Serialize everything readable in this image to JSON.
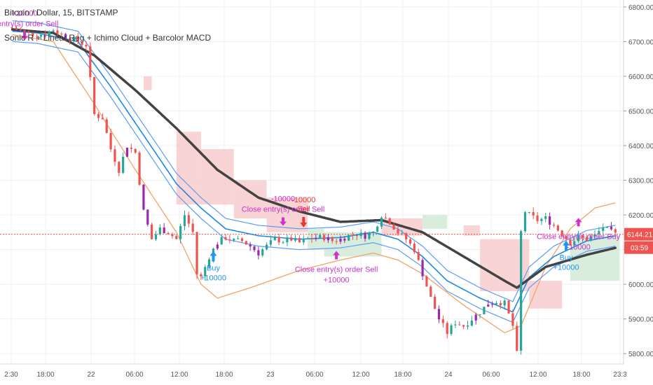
{
  "header": {
    "title": "Bitcoin / Dollar, 15, BITSTAMP",
    "indicators": "Sonic R + Linear Reg + Ichimo Cloud + Barcolor MACD"
  },
  "colors": {
    "up": "#26a69a",
    "down": "#ef5350",
    "macd_purple": "#9c27b0",
    "ema_dark": "#434343",
    "ema_blue_outer": "#5b9cf6",
    "ema_blue_mid": "#1e88e5",
    "linreg_orange": "#f4a261",
    "cloud_red": "#f8c9c9",
    "cloud_green": "#cfe8d5",
    "strategy_magenta": "#cc33cc",
    "strategy_blue": "#2196f3",
    "strategy_red": "#e53935",
    "price_line": "#ef5350"
  },
  "price_axis": {
    "ticks": [
      "6800.00",
      "6700.00",
      "6600.00",
      "6500.00",
      "6400.00",
      "6300.00",
      "6200.00",
      "6100.00",
      "6000.00",
      "5900.00",
      "5800.00"
    ],
    "current_price": "6144.21",
    "countdown": "03:59"
  },
  "time_axis": {
    "ticks": [
      "2:30",
      "18:00",
      "22",
      "06:00",
      "12:00",
      "18:00",
      "23",
      "06:00",
      "12:00",
      "18:00",
      "24",
      "06:00",
      "12:00",
      "18:00",
      "23:3"
    ]
  },
  "annotations": [
    {
      "kind": "close-sell",
      "text": "e entry(s) order Sell",
      "qty": "+10000"
    },
    {
      "kind": "buy",
      "text": "Buy",
      "qty": "+10000"
    },
    {
      "kind": "close-sell",
      "text": "Close entry(s) order Sell",
      "qty": "-10000"
    },
    {
      "kind": "sell",
      "text": "Sell",
      "qty": "-10000"
    },
    {
      "kind": "close-buy",
      "text": "Close entry(s) order Sell",
      "qty": "+10000"
    },
    {
      "kind": "buy",
      "text": "Buy",
      "qty": "+10000"
    },
    {
      "kind": "close-buy",
      "text": "Close entry(s) order Buy",
      "qty": "-10000"
    }
  ],
  "chart_data": {
    "type": "candlestick",
    "symbol": "Bitcoin / Dollar",
    "interval": "15",
    "exchange": "BITSTAMP",
    "ylim": [
      5770,
      6820
    ],
    "x_range_hours": [
      0,
      74
    ],
    "grid": true,
    "close_path": [
      [
        0,
        6740
      ],
      [
        2,
        6722
      ],
      [
        4,
        6720
      ],
      [
        5,
        6735
      ],
      [
        6,
        6720
      ],
      [
        8,
        6700
      ],
      [
        9,
        6690
      ],
      [
        10,
        6490
      ],
      [
        11,
        6480
      ],
      [
        12,
        6390
      ],
      [
        13,
        6330
      ],
      [
        14,
        6400
      ],
      [
        15,
        6380
      ],
      [
        16,
        6210
      ],
      [
        17,
        6130
      ],
      [
        18,
        6160
      ],
      [
        19,
        6150
      ],
      [
        20,
        6130
      ],
      [
        21,
        6200
      ],
      [
        22,
        6150
      ],
      [
        22.5,
        6030
      ],
      [
        23,
        6020
      ],
      [
        24,
        6080
      ],
      [
        25,
        6120
      ],
      [
        26,
        6135
      ],
      [
        27,
        6125
      ],
      [
        28,
        6125
      ],
      [
        29,
        6110
      ],
      [
        30,
        6090
      ],
      [
        31,
        6110
      ],
      [
        32,
        6130
      ],
      [
        33,
        6125
      ],
      [
        34,
        6130
      ],
      [
        35,
        6120
      ],
      [
        36,
        6130
      ],
      [
        37,
        6135
      ],
      [
        38,
        6135
      ],
      [
        39,
        6125
      ],
      [
        40,
        6130
      ],
      [
        41,
        6140
      ],
      [
        42,
        6145
      ],
      [
        43,
        6140
      ],
      [
        44,
        6150
      ],
      [
        45,
        6200
      ],
      [
        46,
        6180
      ],
      [
        47,
        6150
      ],
      [
        48,
        6130
      ],
      [
        49,
        6100
      ],
      [
        50,
        6030
      ],
      [
        51,
        5960
      ],
      [
        52,
        5900
      ],
      [
        53,
        5860
      ],
      [
        54,
        5890
      ],
      [
        55,
        5880
      ],
      [
        56,
        5900
      ],
      [
        57,
        5920
      ],
      [
        58,
        5945
      ],
      [
        59,
        5950
      ],
      [
        60,
        5945
      ],
      [
        61,
        5880
      ],
      [
        61.5,
        5800
      ],
      [
        62,
        6150
      ],
      [
        62.5,
        6210
      ],
      [
        63,
        6200
      ],
      [
        64,
        6185
      ],
      [
        65,
        6190
      ],
      [
        66,
        6170
      ],
      [
        67,
        6145
      ],
      [
        68,
        6120
      ],
      [
        69,
        6135
      ],
      [
        70,
        6130
      ],
      [
        71,
        6140
      ],
      [
        72,
        6165
      ],
      [
        73,
        6150
      ],
      [
        73.5,
        6144.21
      ]
    ],
    "ema_slow_path": [
      [
        0,
        6735
      ],
      [
        5,
        6725
      ],
      [
        10,
        6660
      ],
      [
        15,
        6560
      ],
      [
        20,
        6450
      ],
      [
        25,
        6330
      ],
      [
        30,
        6250
      ],
      [
        35,
        6210
      ],
      [
        40,
        6180
      ],
      [
        45,
        6185
      ],
      [
        50,
        6150
      ],
      [
        55,
        6080
      ],
      [
        60,
        6010
      ],
      [
        61.5,
        5990
      ],
      [
        65,
        6050
      ],
      [
        70,
        6085
      ],
      [
        73.5,
        6105
      ]
    ],
    "ema_band_path": [
      [
        0,
        6730
      ],
      [
        3,
        6725
      ],
      [
        8,
        6700
      ],
      [
        12,
        6570
      ],
      [
        16,
        6430
      ],
      [
        20,
        6290
      ],
      [
        23,
        6220
      ],
      [
        26,
        6160
      ],
      [
        30,
        6140
      ],
      [
        35,
        6130
      ],
      [
        40,
        6135
      ],
      [
        44,
        6150
      ],
      [
        47,
        6130
      ],
      [
        50,
        6080
      ],
      [
        53,
        6010
      ],
      [
        57,
        5960
      ],
      [
        61,
        5920
      ],
      [
        63,
        6020
      ],
      [
        66,
        6080
      ],
      [
        70,
        6125
      ],
      [
        73.5,
        6140
      ]
    ],
    "linreg_path": [
      [
        0,
        6720
      ],
      [
        5,
        6700
      ],
      [
        10,
        6520
      ],
      [
        15,
        6330
      ],
      [
        20,
        6150
      ],
      [
        23,
        6000
      ],
      [
        25,
        5960
      ],
      [
        29,
        5990
      ],
      [
        35,
        6040
      ],
      [
        40,
        6070
      ],
      [
        44,
        6090
      ],
      [
        47,
        6070
      ],
      [
        50,
        6030
      ],
      [
        55,
        5940
      ],
      [
        60,
        5860
      ],
      [
        62,
        5880
      ],
      [
        65,
        6050
      ],
      [
        68,
        6160
      ],
      [
        71,
        6220
      ],
      [
        73.5,
        6235
      ]
    ],
    "cloud_spans": [
      {
        "from": 16,
        "to": 17,
        "hi": 6600,
        "lo": 6560,
        "color": "red"
      },
      {
        "from": 20,
        "to": 23,
        "hi": 6440,
        "lo": 6230,
        "color": "red"
      },
      {
        "from": 23,
        "to": 27,
        "hi": 6390,
        "lo": 6230,
        "color": "red"
      },
      {
        "from": 27,
        "to": 31,
        "hi": 6300,
        "lo": 6190,
        "color": "red"
      },
      {
        "from": 31,
        "to": 36,
        "hi": 6250,
        "lo": 6150,
        "color": "red"
      },
      {
        "from": 36,
        "to": 38,
        "hi": 6160,
        "lo": 6100,
        "color": "green"
      },
      {
        "from": 38,
        "to": 45,
        "hi": 6150,
        "lo": 6080,
        "color": "green"
      },
      {
        "from": 45,
        "to": 50,
        "hi": 6190,
        "lo": 6140,
        "color": "red"
      },
      {
        "from": 50,
        "to": 53,
        "hi": 6200,
        "lo": 6160,
        "color": "green"
      },
      {
        "from": 55,
        "to": 57,
        "hi": 6170,
        "lo": 6140,
        "color": "red"
      },
      {
        "from": 57,
        "to": 63,
        "hi": 6130,
        "lo": 5980,
        "color": "red"
      },
      {
        "from": 63,
        "to": 67,
        "hi": 6010,
        "lo": 5930,
        "color": "red"
      },
      {
        "from": 68,
        "to": 74,
        "hi": 6140,
        "lo": 6010,
        "color": "green"
      }
    ],
    "markers": [
      {
        "t": 1.5,
        "price": 6720,
        "kind": "close-sell"
      },
      {
        "t": 24.5,
        "price": 6080,
        "kind": "buy"
      },
      {
        "t": 33,
        "price": 6185,
        "kind": "close-sell"
      },
      {
        "t": 35.5,
        "price": 6180,
        "kind": "sell"
      },
      {
        "t": 39.5,
        "price": 6080,
        "kind": "close-buy"
      },
      {
        "t": 67.5,
        "price": 6110,
        "kind": "buy"
      },
      {
        "t": 69,
        "price": 6175,
        "kind": "close-buy"
      }
    ]
  }
}
